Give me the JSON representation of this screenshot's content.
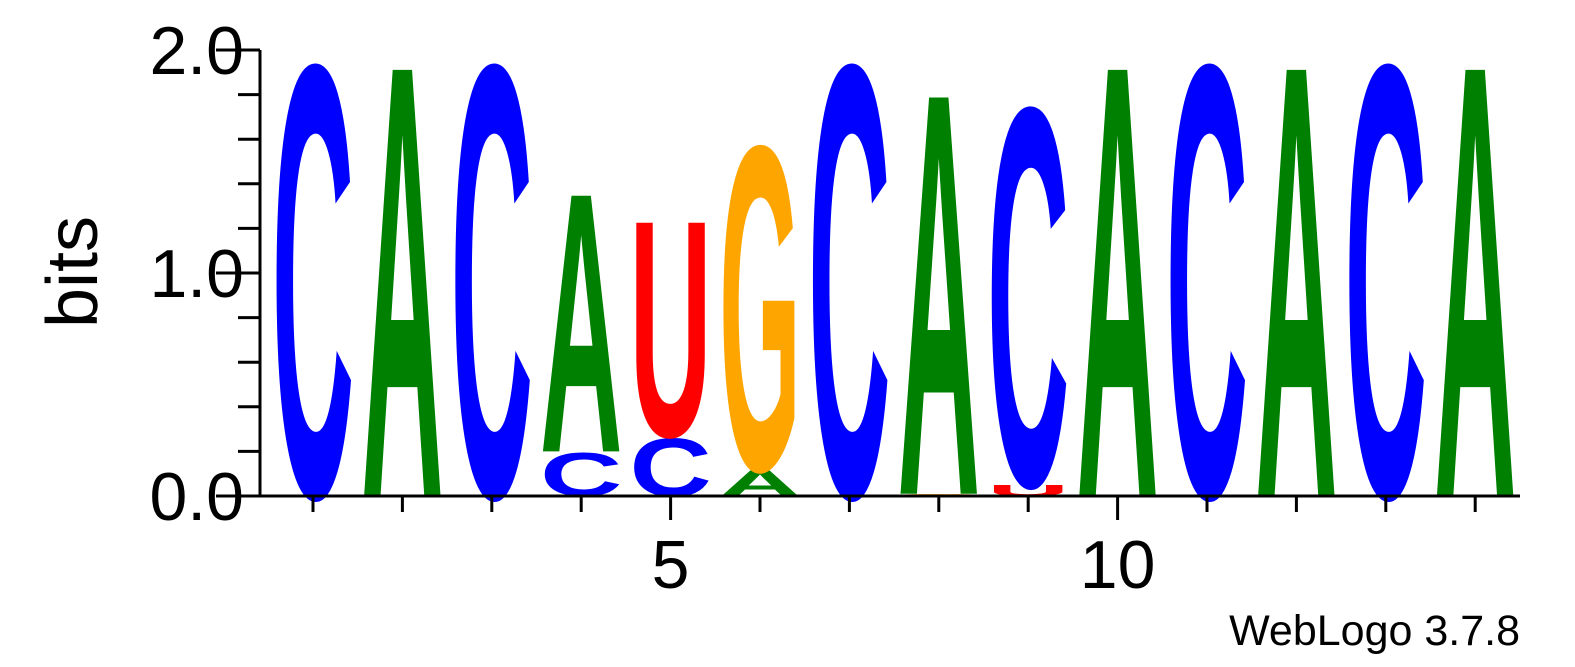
{
  "chart_data": {
    "type": "sequence-logo",
    "ylabel": "bits",
    "ylim": [
      0,
      2.0
    ],
    "y_ticks": [
      "0.0",
      "1.0",
      "2.0"
    ],
    "y_tick_values": [
      0.0,
      1.0,
      2.0
    ],
    "x_ticks": [
      "5",
      "10"
    ],
    "x_tick_values": [
      5,
      10
    ],
    "x_range": [
      1,
      14
    ],
    "colors": {
      "A": "#008000",
      "C": "#0000ff",
      "G": "#ffa500",
      "U": "#ff0000"
    },
    "positions": [
      {
        "position": 1,
        "letters": [
          {
            "base": "C",
            "bits": 2.0
          }
        ]
      },
      {
        "position": 2,
        "letters": [
          {
            "base": "A",
            "bits": 2.0
          }
        ]
      },
      {
        "position": 3,
        "letters": [
          {
            "base": "C",
            "bits": 2.0
          }
        ]
      },
      {
        "position": 4,
        "letters": [
          {
            "base": "C",
            "bits": 0.2
          },
          {
            "base": "A",
            "bits": 1.2
          }
        ]
      },
      {
        "position": 5,
        "letters": [
          {
            "base": "C",
            "bits": 0.27
          },
          {
            "base": "U",
            "bits": 1.0
          }
        ]
      },
      {
        "position": 6,
        "letters": [
          {
            "base": "A",
            "bits": 0.12
          },
          {
            "base": "G",
            "bits": 1.5
          }
        ]
      },
      {
        "position": 7,
        "letters": [
          {
            "base": "C",
            "bits": 2.0
          }
        ]
      },
      {
        "position": 8,
        "letters": [
          {
            "base": "G",
            "bits": 0.01
          },
          {
            "base": "A",
            "bits": 1.86
          }
        ]
      },
      {
        "position": 9,
        "letters": [
          {
            "base": "U",
            "bits": 0.05
          },
          {
            "base": "C",
            "bits": 1.75
          }
        ]
      },
      {
        "position": 10,
        "letters": [
          {
            "base": "A",
            "bits": 2.0
          }
        ]
      },
      {
        "position": 11,
        "letters": [
          {
            "base": "C",
            "bits": 2.0
          }
        ]
      },
      {
        "position": 12,
        "letters": [
          {
            "base": "A",
            "bits": 2.0
          }
        ]
      },
      {
        "position": 13,
        "letters": [
          {
            "base": "C",
            "bits": 2.0
          }
        ]
      },
      {
        "position": 14,
        "letters": [
          {
            "base": "A",
            "bits": 2.0
          }
        ]
      }
    ]
  },
  "credit": "WebLogo 3.7.8"
}
